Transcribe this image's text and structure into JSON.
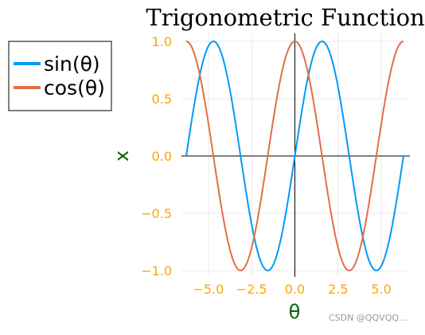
{
  "chart_data": {
    "type": "line",
    "title": "Trigonometric Functions",
    "xlabel": "θ",
    "ylabel": "x",
    "xlim": [
      -6.283,
      6.283
    ],
    "ylim": [
      -1.0,
      1.0
    ],
    "grid": true,
    "legend_position": "outside-left",
    "x_ticks": [
      {
        "value": -5.0,
        "label": "−5.0"
      },
      {
        "value": -2.5,
        "label": "−2.5"
      },
      {
        "value": 0.0,
        "label": "0.0"
      },
      {
        "value": 2.5,
        "label": "2.5"
      },
      {
        "value": 5.0,
        "label": "5.0"
      }
    ],
    "y_ticks": [
      {
        "value": 1.0,
        "label": "1.0"
      },
      {
        "value": 0.5,
        "label": "0.5"
      },
      {
        "value": 0.0,
        "label": "0.0"
      },
      {
        "value": -0.5,
        "label": "−0.5"
      },
      {
        "value": -1.0,
        "label": "−1.0"
      }
    ],
    "series": [
      {
        "name": "sin(θ)",
        "color": "#009AFA",
        "function": "sin",
        "x": [
          -6.283,
          -5.498,
          -4.712,
          -3.927,
          -3.142,
          -2.356,
          -1.571,
          -0.785,
          0.0,
          0.785,
          1.571,
          2.356,
          3.142,
          3.927,
          4.712,
          5.498,
          6.283
        ],
        "values": [
          0.0,
          0.707,
          1.0,
          0.707,
          0.0,
          -0.707,
          -1.0,
          -0.707,
          0.0,
          0.707,
          1.0,
          0.707,
          0.0,
          -0.707,
          -1.0,
          -0.707,
          0.0
        ]
      },
      {
        "name": "cos(θ)",
        "color": "#E26F46",
        "function": "cos",
        "x": [
          -6.283,
          -5.498,
          -4.712,
          -3.927,
          -3.142,
          -2.356,
          -1.571,
          -0.785,
          0.0,
          0.785,
          1.571,
          2.356,
          3.142,
          3.927,
          4.712,
          5.498,
          6.283
        ],
        "values": [
          1.0,
          0.707,
          0.0,
          -0.707,
          -1.0,
          -0.707,
          0.0,
          0.707,
          1.0,
          0.707,
          0.0,
          -0.707,
          -1.0,
          -0.707,
          0.0,
          0.707,
          1.0
        ]
      }
    ],
    "colors": {
      "tick_labels": "#FFA500",
      "axis_labels": "#006400",
      "axes": "#000000",
      "grid": "#EAEAEA"
    }
  },
  "watermark": "CSDN @QQVQQ..."
}
